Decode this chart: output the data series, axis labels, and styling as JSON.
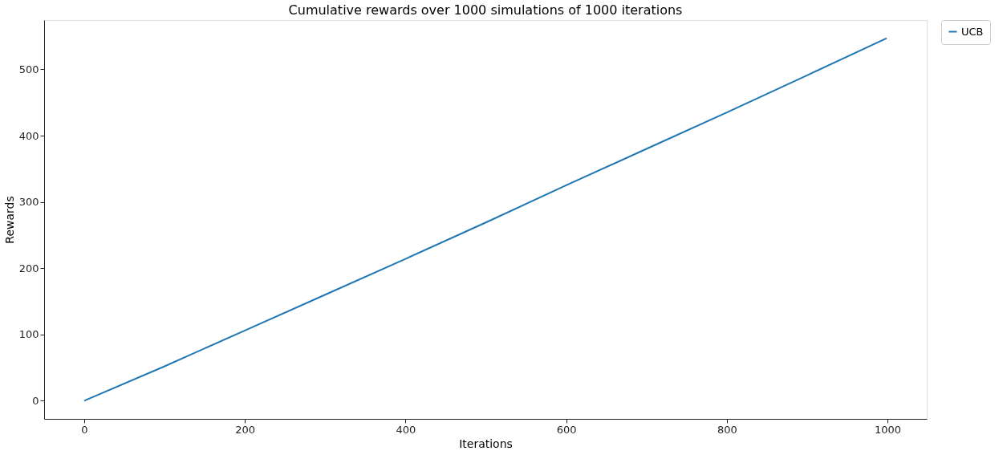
{
  "chart_data": {
    "type": "line",
    "title": "Cumulative rewards over 1000 simulations of 1000 iterations",
    "xlabel": "Iterations",
    "ylabel": "Rewards",
    "x": [
      0,
      100,
      200,
      300,
      400,
      500,
      600,
      700,
      800,
      900,
      999
    ],
    "series": [
      {
        "name": "UCB",
        "color": "#1f77b4",
        "values": [
          0,
          52,
          106,
          160,
          214,
          269,
          325,
          380,
          435,
          491,
          547
        ]
      }
    ],
    "xlim": [
      -49.95,
      1048.95
    ],
    "ylim": [
      -27.35,
      574.35
    ],
    "xticks": [
      0,
      200,
      400,
      600,
      800,
      1000
    ],
    "yticks": [
      0,
      100,
      200,
      300,
      400,
      500
    ],
    "grid": false,
    "legend": "right",
    "marker": "none",
    "line_style": "solid"
  }
}
